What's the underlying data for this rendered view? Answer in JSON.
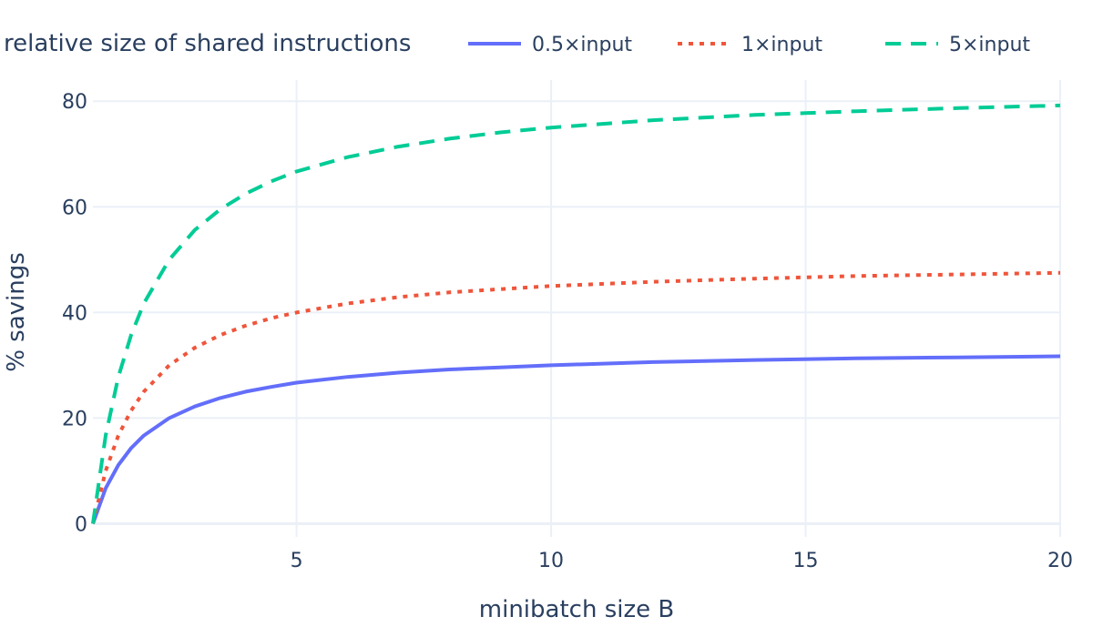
{
  "chart_data": {
    "type": "line",
    "xlabel": "minibatch size B",
    "ylabel": "% savings",
    "xlim": [
      1,
      20
    ],
    "ylim": [
      -2.5,
      84
    ],
    "x_ticks": [
      5,
      10,
      15,
      20
    ],
    "y_ticks": [
      0,
      20,
      40,
      60,
      80
    ],
    "grid": true,
    "legend": {
      "title": "relative size of shared instructions",
      "placement": "top, horizontal"
    },
    "x": [
      1,
      1.25,
      1.5,
      1.75,
      2,
      2.5,
      3,
      3.5,
      4,
      4.5,
      5,
      6,
      7,
      8,
      9,
      10,
      12,
      14,
      16,
      18,
      20
    ],
    "series": [
      {
        "name": "0.5×input",
        "color": "#636efa",
        "dash": "solid",
        "values": [
          0,
          6.7,
          11.1,
          14.3,
          16.7,
          20.0,
          22.2,
          23.8,
          25.0,
          25.9,
          26.7,
          27.8,
          28.6,
          29.2,
          29.6,
          30.0,
          30.6,
          31.0,
          31.3,
          31.5,
          31.7
        ]
      },
      {
        "name": "1×input",
        "color": "#ef553b",
        "dash": "dot",
        "values": [
          0,
          10.0,
          16.7,
          21.4,
          25.0,
          30.0,
          33.3,
          35.7,
          37.5,
          38.9,
          40.0,
          41.7,
          42.9,
          43.8,
          44.4,
          45.0,
          45.8,
          46.4,
          46.9,
          47.2,
          47.5
        ]
      },
      {
        "name": "5×input",
        "color": "#00cc96",
        "dash": "dash",
        "values": [
          0,
          16.7,
          27.8,
          35.7,
          41.7,
          50.0,
          55.6,
          59.5,
          62.5,
          64.8,
          66.7,
          69.4,
          71.4,
          72.9,
          74.1,
          75.0,
          76.4,
          77.4,
          78.1,
          78.7,
          79.2
        ]
      }
    ]
  }
}
